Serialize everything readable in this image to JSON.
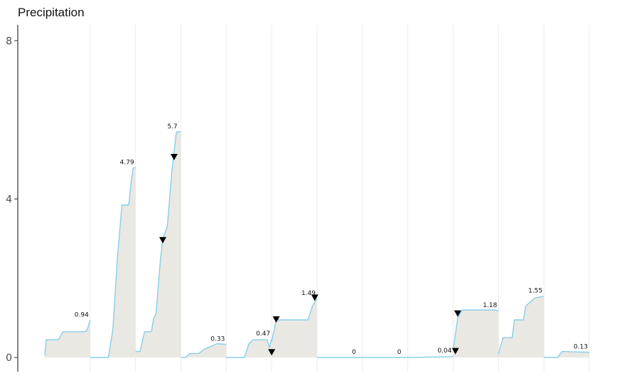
{
  "chart_data": {
    "type": "area",
    "title": "Precipitation",
    "ylim": [
      0,
      8.4
    ],
    "y_ticks": [
      0,
      4,
      8
    ],
    "grid": "vertical gridlines only",
    "colors": {
      "fill": "#e9e8e3",
      "line": "#87ceeb",
      "grid": "#ebebeb",
      "axis": "#333333",
      "marker": "#000000"
    },
    "segments": [
      {
        "points": [
          [
            0.0,
            0.05
          ],
          [
            0.03,
            0.45
          ],
          [
            0.3,
            0.45
          ],
          [
            0.4,
            0.65
          ],
          [
            0.9,
            0.65
          ],
          [
            0.95,
            0.75
          ],
          [
            1.0,
            0.94
          ]
        ],
        "label": "0.94"
      },
      {
        "points": [
          [
            1.0,
            0.0
          ],
          [
            1.4,
            0.0
          ],
          [
            1.5,
            0.7
          ],
          [
            1.6,
            2.5
          ],
          [
            1.7,
            3.85
          ],
          [
            1.85,
            3.85
          ],
          [
            1.9,
            4.4
          ],
          [
            1.95,
            4.79
          ],
          [
            2.0,
            4.79
          ]
        ],
        "label": "4.79"
      },
      {
        "points": [
          [
            2.0,
            0.15
          ],
          [
            2.1,
            0.15
          ],
          [
            2.2,
            0.65
          ],
          [
            2.35,
            0.65
          ],
          [
            2.4,
            1.0
          ],
          [
            2.45,
            1.1
          ],
          [
            2.55,
            2.5
          ],
          [
            2.6,
            3.0
          ],
          [
            2.7,
            3.3
          ],
          [
            2.8,
            4.7
          ],
          [
            2.9,
            5.7
          ],
          [
            3.0,
            5.7
          ]
        ],
        "label": "5.7"
      },
      {
        "points": [
          [
            3.0,
            0.0
          ],
          [
            3.1,
            0.0
          ],
          [
            3.2,
            0.1
          ],
          [
            3.4,
            0.1
          ],
          [
            3.5,
            0.2
          ],
          [
            3.8,
            0.35
          ],
          [
            4.0,
            0.33
          ]
        ],
        "label": "0.33"
      },
      {
        "points": [
          [
            4.0,
            0.0
          ],
          [
            4.4,
            0.0
          ],
          [
            4.5,
            0.35
          ],
          [
            4.6,
            0.45
          ],
          [
            4.9,
            0.45
          ],
          [
            4.95,
            0.25
          ],
          [
            5.0,
            0.47
          ]
        ],
        "label": "0.47"
      },
      {
        "points": [
          [
            5.0,
            0.4
          ],
          [
            5.1,
            0.95
          ],
          [
            5.8,
            0.95
          ],
          [
            5.9,
            1.3
          ],
          [
            6.0,
            1.49
          ]
        ],
        "label": "1.49"
      },
      {
        "points": [
          [
            6.0,
            0.0
          ],
          [
            7.0,
            0.0
          ]
        ],
        "label": "0"
      },
      {
        "points": [
          [
            7.0,
            0.0
          ],
          [
            8.0,
            0.0
          ]
        ],
        "label": "0"
      },
      {
        "points": [
          [
            8.0,
            0.0
          ],
          [
            8.95,
            0.02
          ],
          [
            9.0,
            0.04
          ]
        ],
        "label": "0.04"
      },
      {
        "points": [
          [
            9.0,
            0.2
          ],
          [
            9.1,
            1.0
          ],
          [
            9.2,
            1.2
          ],
          [
            9.9,
            1.2
          ],
          [
            10.0,
            1.18
          ]
        ],
        "label": "1.18"
      },
      {
        "points": [
          [
            10.0,
            0.1
          ],
          [
            10.1,
            0.5
          ],
          [
            10.3,
            0.5
          ],
          [
            10.35,
            0.95
          ],
          [
            10.55,
            0.95
          ],
          [
            10.6,
            1.3
          ],
          [
            10.7,
            1.4
          ],
          [
            10.8,
            1.5
          ],
          [
            11.0,
            1.55
          ]
        ],
        "label": "1.55"
      },
      {
        "points": [
          [
            11.0,
            0.0
          ],
          [
            11.3,
            0.0
          ],
          [
            11.4,
            0.15
          ],
          [
            12.0,
            0.13
          ]
        ],
        "label": "0.13"
      }
    ],
    "markers": [
      {
        "x": 2.6,
        "y": 2.95
      },
      {
        "x": 2.85,
        "y": 5.05
      },
      {
        "x": 5.0,
        "y": 0.12
      },
      {
        "x": 5.1,
        "y": 0.95
      },
      {
        "x": 5.95,
        "y": 1.5
      },
      {
        "x": 9.05,
        "y": 0.15
      },
      {
        "x": 9.1,
        "y": 1.1
      }
    ]
  }
}
